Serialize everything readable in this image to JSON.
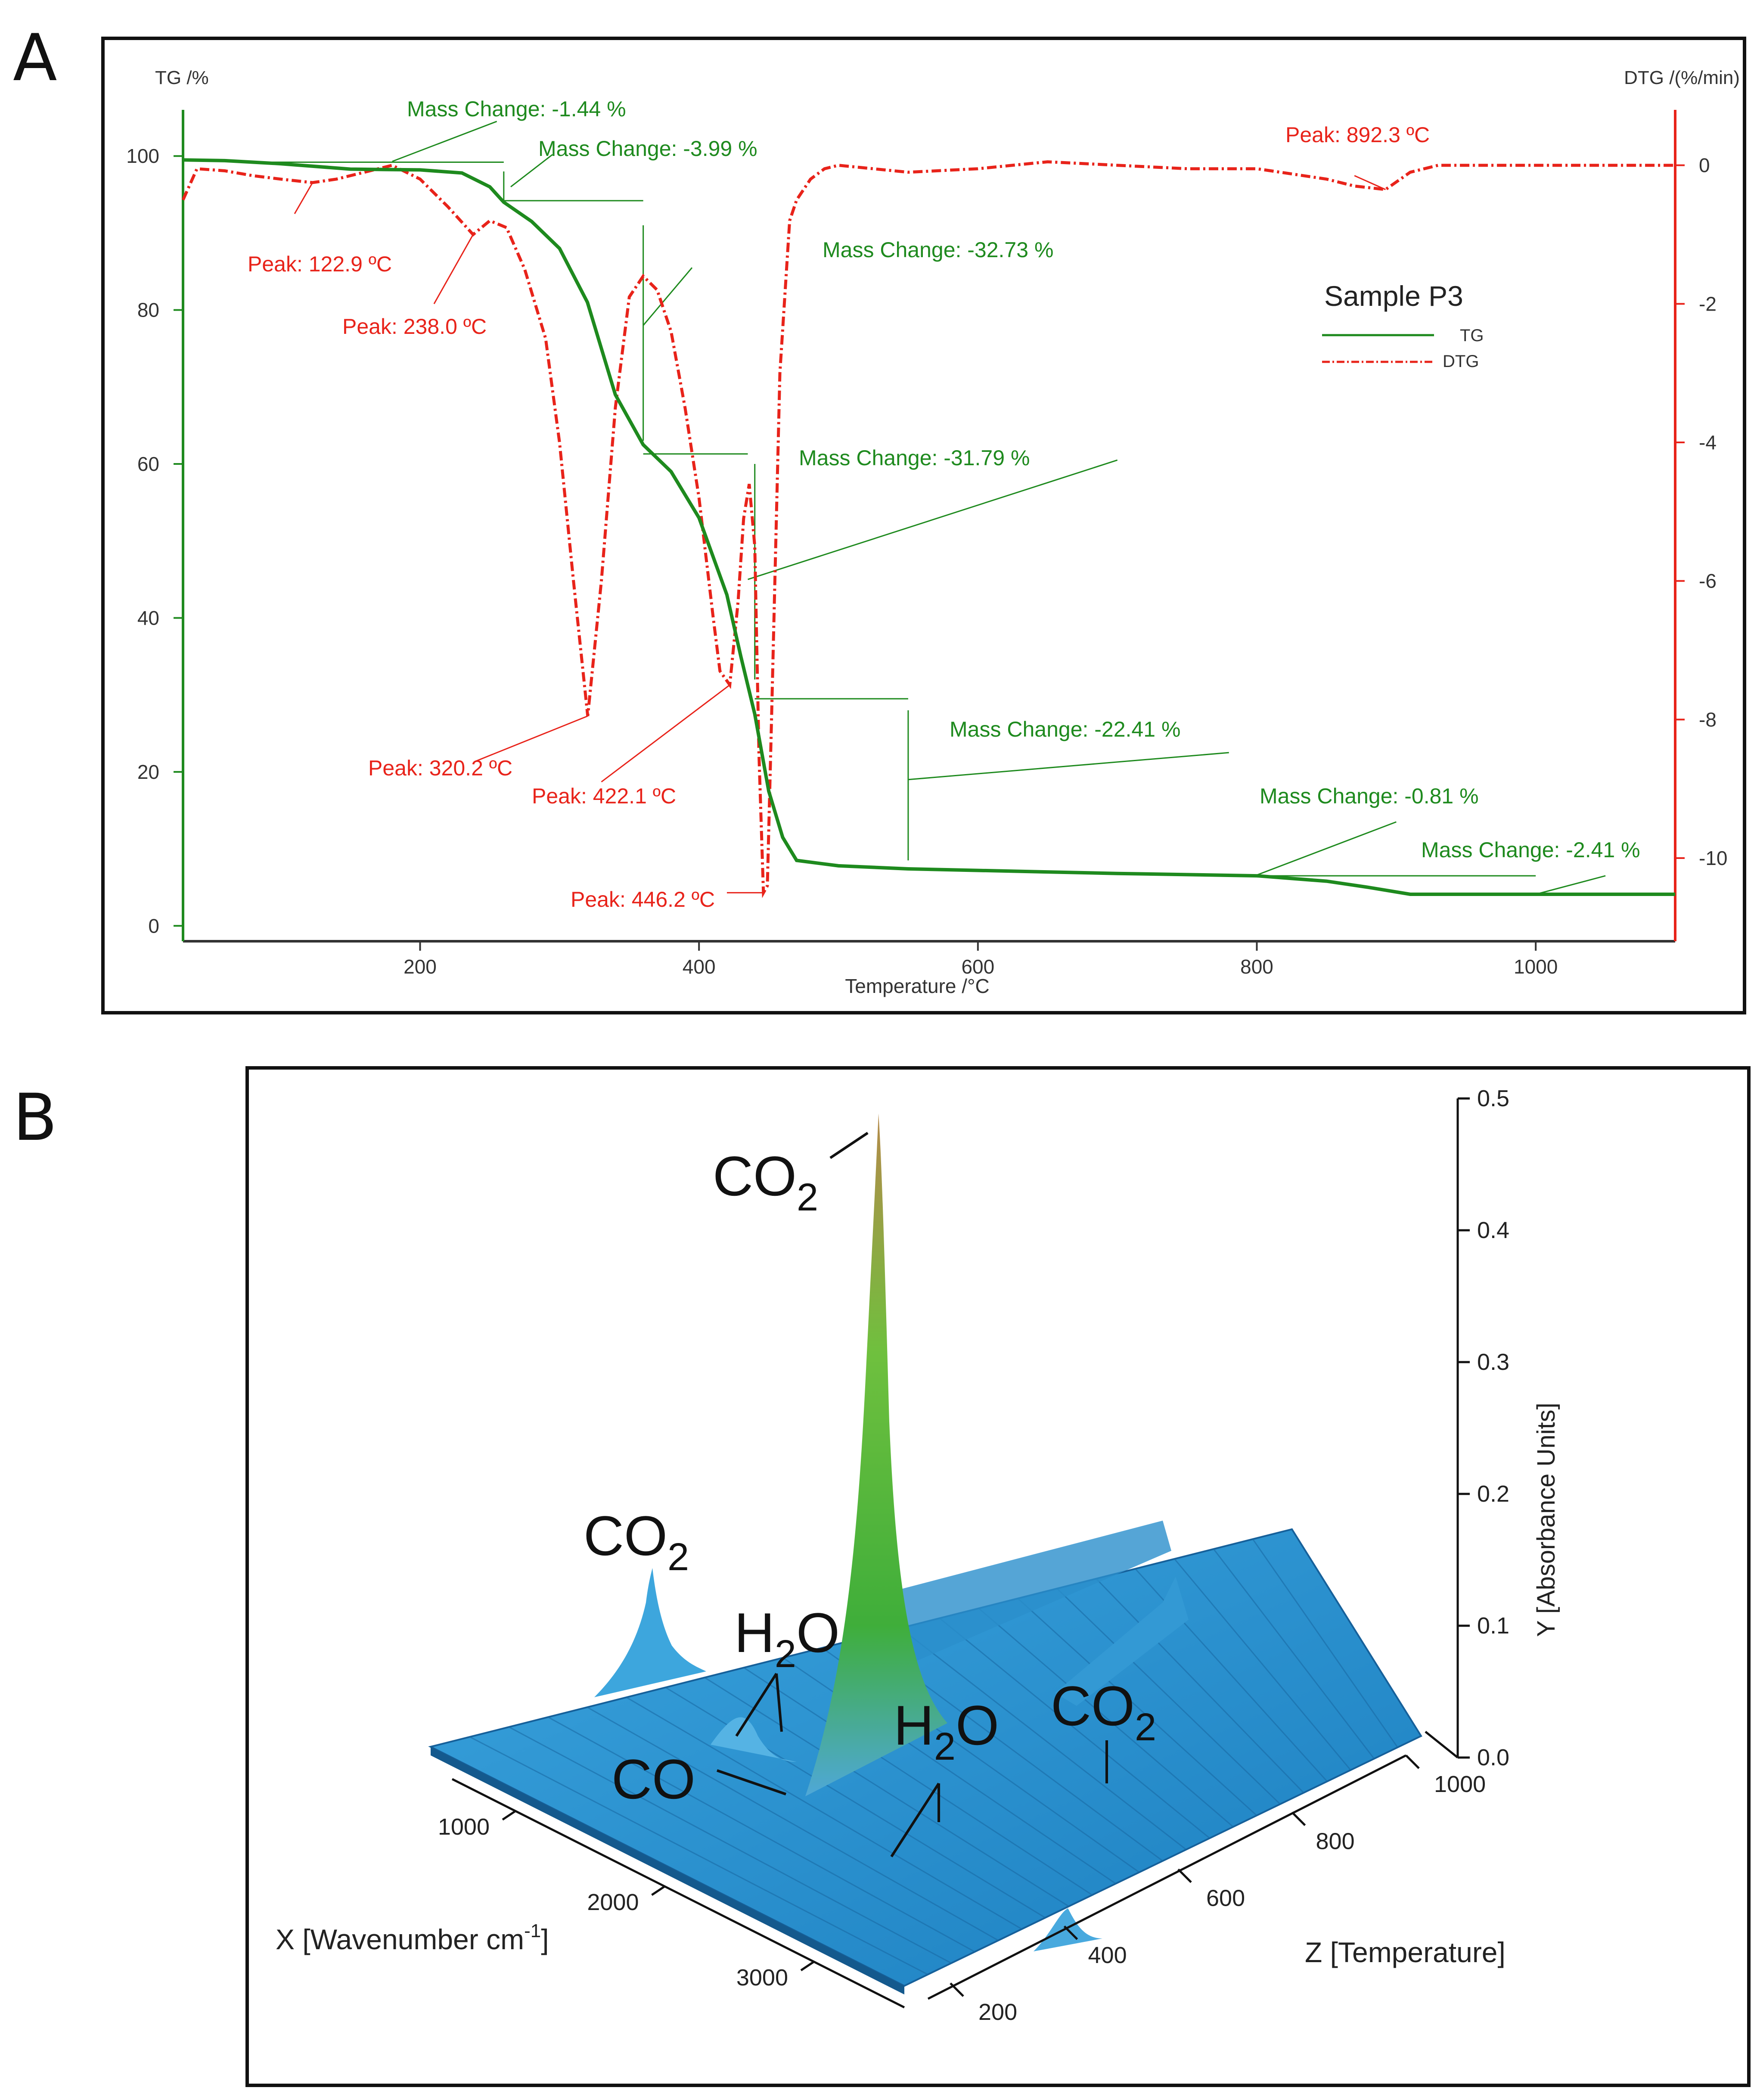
{
  "panels": {
    "a_label": "A",
    "b_label": "B"
  },
  "colors": {
    "tg": "#1e8a1e",
    "dtg": "#e8231a",
    "axis_left": "#1e8a1e",
    "axis_right": "#e8231a",
    "surface": "#2a93cf",
    "surface_dark": "#1a6fa8",
    "peak_green": "#7bc84a",
    "peak_tan": "#c8a070"
  },
  "chart_data": [
    {
      "type": "line",
      "panel": "A",
      "xlabel": "Temperature /°C",
      "ylabel_left": "TG /%",
      "ylabel_right": "DTG /(%/min)",
      "xlim": [
        30,
        1100
      ],
      "ylim_left": [
        -2,
        106
      ],
      "ylim_right": [
        -11.2,
        0.8
      ],
      "x_ticks": [
        "200",
        "400",
        "600",
        "800",
        "1000"
      ],
      "y_left_ticks": [
        "0",
        "20",
        "40",
        "60",
        "80",
        "100"
      ],
      "y_right_ticks": [
        "0",
        "-2",
        "-4",
        "-6",
        "-8",
        "-10"
      ],
      "legend": {
        "title": "Sample P3",
        "entries": [
          "TG",
          "DTG"
        ]
      },
      "series": [
        {
          "name": "TG",
          "x": [
            30,
            60,
            100,
            150,
            200,
            230,
            250,
            260,
            280,
            300,
            320,
            340,
            360,
            380,
            400,
            420,
            430,
            440,
            450,
            460,
            470,
            500,
            550,
            600,
            700,
            800,
            850,
            880,
            910,
            1000,
            1100
          ],
          "y": [
            99.5,
            99.4,
            99,
            98.3,
            98.2,
            97.8,
            96,
            94,
            91.5,
            88,
            81,
            69,
            62.5,
            59,
            53,
            43,
            35,
            27.5,
            17.5,
            11.5,
            8.5,
            7.8,
            7.4,
            7.2,
            6.8,
            6.5,
            5.8,
            5,
            4.1,
            4.1,
            4.1
          ]
        },
        {
          "name": "DTG",
          "x": [
            30,
            40,
            60,
            80,
            100,
            122.9,
            140,
            160,
            180,
            200,
            220,
            238,
            250,
            262,
            275,
            290,
            300,
            310,
            320.2,
            330,
            340,
            350,
            360,
            370,
            380,
            390,
            400,
            410,
            415,
            422.1,
            428,
            432,
            436,
            440,
            443,
            446.2,
            449,
            452,
            458,
            465,
            470,
            480,
            490,
            500,
            550,
            600,
            650,
            700,
            750,
            800,
            850,
            870,
            892.3,
            910,
            930,
            1000,
            1100
          ],
          "y": [
            -0.5,
            -0.05,
            -0.08,
            -0.15,
            -0.2,
            -0.25,
            -0.2,
            -0.1,
            0,
            -0.2,
            -0.6,
            -1.0,
            -0.8,
            -0.9,
            -1.5,
            -2.5,
            -4,
            -6,
            -7.95,
            -6,
            -3.5,
            -1.9,
            -1.6,
            -1.8,
            -2.4,
            -3.5,
            -4.8,
            -6.5,
            -7.3,
            -7.5,
            -6.3,
            -5.1,
            -4.6,
            -5.5,
            -8.5,
            -10.5,
            -10.4,
            -8,
            -3,
            -0.8,
            -0.5,
            -0.2,
            -0.05,
            0,
            -0.1,
            -0.05,
            0.05,
            0,
            -0.05,
            -0.05,
            -0.2,
            -0.3,
            -0.35,
            -0.1,
            0,
            0,
            0
          ]
        }
      ],
      "annotations_tg": [
        "Mass Change: -1.44 %",
        "Mass Change: -3.99 %",
        "Mass Change: -32.73 %",
        "Mass Change: -31.79 %",
        "Mass Change: -22.41 %",
        "Mass Change: -0.81 %",
        "Mass Change: -2.41 %"
      ],
      "annotations_dtg": [
        "Peak: 122.9 ºC",
        "Peak: 238.0 ºC",
        "Peak: 320.2 ºC",
        "Peak: 422.1 ºC",
        "Peak: 446.2 ºC",
        "Peak: 892.3 ºC"
      ]
    },
    {
      "type": "surface3d",
      "panel": "B",
      "xlabel": "X [Wavenumber cm",
      "xlabel_sup": "-1",
      "xlabel_end": "]",
      "ylabel": "Y [Absorbance Units]",
      "zlabel": "Z [Temperature]",
      "x_ticks": [
        "1000",
        "2000",
        "3000"
      ],
      "y_ticks": [
        "0.5",
        "0.4",
        "0.3",
        "0.2",
        "0.1",
        "0.0"
      ],
      "z_ticks": [
        "1000",
        "800",
        "600",
        "400",
        "200"
      ],
      "ylim": [
        0,
        0.5
      ],
      "species": [
        {
          "main": "CO",
          "sub": "2"
        },
        {
          "main": "CO",
          "sub": "2"
        },
        {
          "main": "H",
          "sub": "2",
          "end": "O"
        },
        {
          "main": "CO",
          "sub": "",
          "end": ""
        },
        {
          "main": "H",
          "sub": "2",
          "end": "O"
        },
        {
          "main": "CO",
          "sub": "2"
        }
      ]
    }
  ]
}
